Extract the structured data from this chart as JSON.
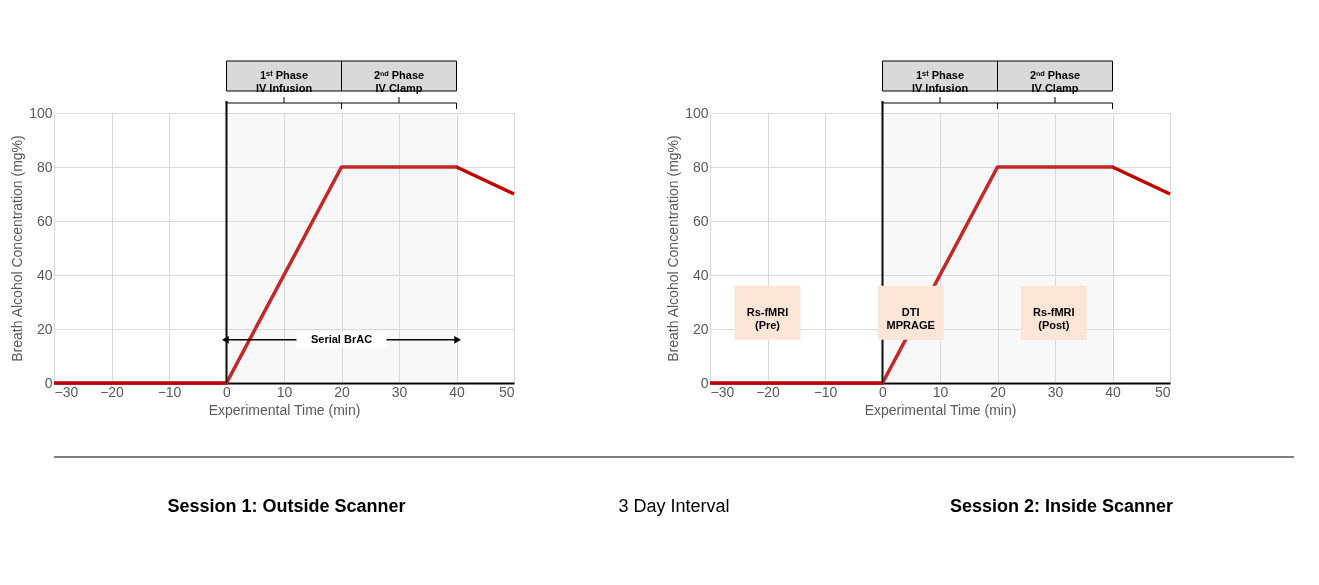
{
  "chart_data": [
    {
      "type": "line",
      "xlabel": "Experimental Time (min)",
      "ylabel": "Breath Alcohol Concentration (mg%)",
      "x": [
        -30,
        0,
        20,
        40,
        50
      ],
      "series": [
        {
          "color": "#c00000",
          "values": [
            0,
            0,
            80,
            80,
            70
          ]
        }
      ],
      "xlim": [
        -30,
        50
      ],
      "xticks": [
        -30,
        -20,
        -10,
        0,
        10,
        20,
        30,
        40,
        50
      ],
      "ylim": [
        0,
        100
      ],
      "yticks": [
        0,
        20,
        40,
        60,
        80,
        100
      ],
      "grid": true,
      "marker": "none",
      "line_style": "solid",
      "ref_lines": [
        {
          "axis": "x",
          "value": 0,
          "color": "#000000"
        }
      ],
      "bands": [
        {
          "axis": "x",
          "from": 0,
          "to": 20,
          "label": "1ˢᵗ Phase\nIV Infusion",
          "color": "#d9d9d9"
        },
        {
          "axis": "x",
          "from": 20,
          "to": 40,
          "label": "2ⁿᵈ Phase\nIV Clamp",
          "color": "#d9d9d9"
        }
      ],
      "annotations": [
        "Serial BrAC"
      ]
    },
    {
      "type": "line",
      "xlabel": "Experimental Time (min)",
      "ylabel": "Breath Alcohol Concentration (mg%)",
      "x": [
        -30,
        0,
        20,
        40,
        50
      ],
      "series": [
        {
          "color": "#c00000",
          "values": [
            0,
            0,
            80,
            80,
            70
          ]
        }
      ],
      "xlim": [
        -30,
        50
      ],
      "xticks": [
        -30,
        -20,
        -10,
        0,
        10,
        20,
        30,
        40,
        50
      ],
      "ylim": [
        0,
        100
      ],
      "yticks": [
        0,
        20,
        40,
        60,
        80,
        100
      ],
      "grid": true,
      "marker": "none",
      "line_style": "solid",
      "ref_lines": [
        {
          "axis": "x",
          "value": 0,
          "color": "#000000"
        }
      ],
      "bands": [
        {
          "axis": "x",
          "from": 0,
          "to": 20,
          "label": "1ˢᵗ Phase\nIV Infusion",
          "color": "#d9d9d9"
        },
        {
          "axis": "x",
          "from": 20,
          "to": 40,
          "label": "2ⁿᵈ Phase\nIV Clamp",
          "color": "#d9d9d9"
        }
      ],
      "annotations": [
        "Rs-fMRI\n(Pre)",
        "DTI\nMPRAGE",
        "Rs-fMRI\n(Post)"
      ]
    },
    {
      "type": "other",
      "annotations": [
        "Session 1: Outside Scanner",
        "3 Day Interval",
        "Session 2: Inside Scanner"
      ]
    }
  ]
}
